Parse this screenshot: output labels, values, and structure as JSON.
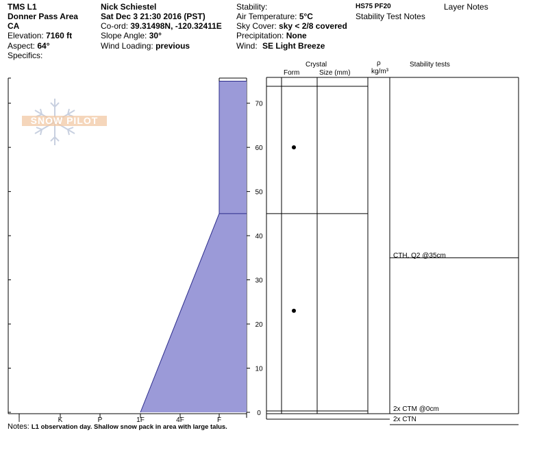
{
  "header": {
    "col1": {
      "site": "TMS L1",
      "area": "Donner Pass Area",
      "state": "CA",
      "elevation_label": "Elevation:",
      "elevation_value": "7160 ft",
      "aspect_label": "Aspect:",
      "aspect_value": "64°",
      "specifics_label": "Specifics:"
    },
    "col2": {
      "observer": "Nick Schiestel",
      "datetime": "Sat Dec 3 21:30 2016 (PST)",
      "coord_label": "Co-ord:",
      "coord_value": "39.31498N, -120.32411E",
      "slope_label": "Slope Angle:",
      "slope_value": "30°",
      "wind_loading_label": "Wind Loading:",
      "wind_loading_value": "previous"
    },
    "col3": {
      "stability_label": "Stability:",
      "air_temp_label": "Air Temperature:",
      "air_temp_value": "5°C",
      "sky_label": "Sky Cover:",
      "sky_value": "sky < 2/8 covered",
      "precip_label": "Precipitation:",
      "precip_value": "None",
      "wind_label": "Wind:",
      "wind_value": "SE Light Breeze"
    },
    "col4": {
      "hs_pf": "HS75 PF20",
      "stability_notes": "Stability Test Notes",
      "layer_notes": "Layer Notes"
    }
  },
  "logo": {
    "text": "SNOW PILOT"
  },
  "table_headers": {
    "crystal": "Crystal",
    "form": "Form",
    "size": "Size (mm)",
    "rho": "ρ",
    "rho_unit": "kg/m³",
    "stability_tests": "Stability tests"
  },
  "stability_tests": [
    {
      "label": "CTH, Q2 @35cm",
      "height": 35
    },
    {
      "label": "2x CTM @0cm",
      "height": 0
    },
    {
      "label": "2x CTN",
      "height": null
    }
  ],
  "notes": {
    "label": "Notes:",
    "text": "L1 observation day.  Shallow snow pack in area with large talus."
  },
  "chart_data": {
    "type": "area",
    "title": "",
    "xlabel": "",
    "ylabel": "",
    "x_categories": [
      "I",
      "K",
      "P",
      "1F",
      "4F",
      "F",
      ""
    ],
    "y_ticks": [
      0,
      10,
      20,
      30,
      40,
      50,
      60,
      70
    ],
    "ylim": [
      0,
      76
    ],
    "snow_height": 75,
    "hardness_profile": [
      {
        "height": 0,
        "hardness": "1F"
      },
      {
        "height": 45,
        "hardness": "F"
      },
      {
        "height": 75,
        "hardness": "F"
      }
    ],
    "layer_boundaries": [
      0,
      45,
      75
    ],
    "grain_markers": [
      60,
      23
    ],
    "fill_color": "#9b9ad8",
    "line_color": "#2a2a8a"
  }
}
